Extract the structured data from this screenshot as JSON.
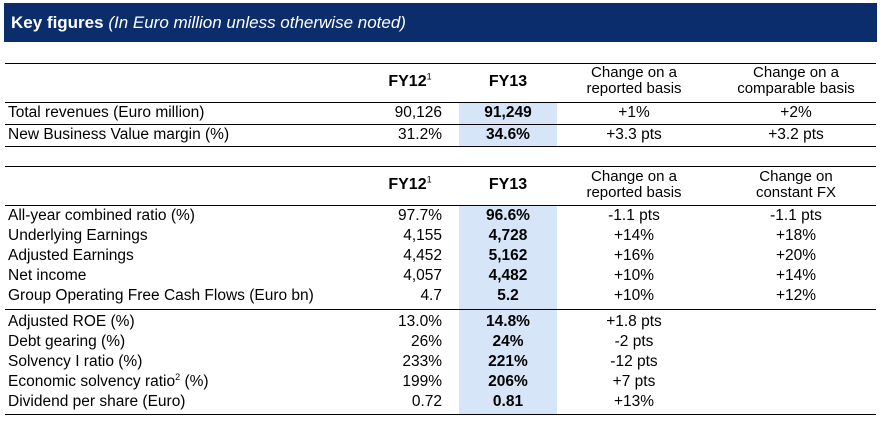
{
  "title": {
    "main": "Key figures",
    "sub": "(In Euro million unless otherwise noted)"
  },
  "table1": {
    "headers": {
      "fy12": "FY12",
      "fy12_note": "1",
      "fy13": "FY13",
      "change_reported_1": "Change on a",
      "change_reported_2": "reported basis",
      "change_other_1": "Change on a",
      "change_other_2": "comparable basis"
    },
    "rows": [
      {
        "label": "Total revenues (Euro million)",
        "fy12": "90,126",
        "fy13": "91,249",
        "reported": "+1%",
        "other": "+2%"
      },
      {
        "label": "New Business Value margin (%)",
        "fy12": "31.2%",
        "fy13": "34.6%",
        "reported": "+3.3 pts",
        "other": "+3.2 pts"
      }
    ]
  },
  "table2": {
    "headers": {
      "fy12": "FY12",
      "fy12_note": "1",
      "fy13": "FY13",
      "change_reported_1": "Change on a",
      "change_reported_2": "reported basis",
      "change_other_1": "Change on",
      "change_other_2": "constant FX"
    },
    "rows": [
      {
        "label": "All-year combined ratio (%)",
        "fy12": "97.7%",
        "fy13": "96.6%",
        "reported": "-1.1 pts",
        "other": "-1.1 pts"
      },
      {
        "label": "Underlying Earnings",
        "fy12": "4,155",
        "fy13": "4,728",
        "reported": "+14%",
        "other": "+18%"
      },
      {
        "label": "Adjusted Earnings",
        "fy12": "4,452",
        "fy13": "5,162",
        "reported": "+16%",
        "other": "+20%"
      },
      {
        "label": "Net income",
        "fy12": "4,057",
        "fy13": "4,482",
        "reported": "+10%",
        "other": "+14%"
      },
      {
        "label": "Group Operating Free Cash Flows (Euro bn)",
        "fy12": "4.7",
        "fy13": "5.2",
        "reported": "+10%",
        "other": "+12%"
      },
      {
        "label": "Adjusted ROE (%)",
        "fy12": "13.0%",
        "fy13": "14.8%",
        "reported": "+1.8 pts",
        "other": ""
      },
      {
        "label": "Debt gearing (%)",
        "fy12": "26%",
        "fy13": "24%",
        "reported": "-2 pts",
        "other": ""
      },
      {
        "label": "Solvency I ratio (%)",
        "fy12": "233%",
        "fy13": "221%",
        "reported": "-12 pts",
        "other": ""
      },
      {
        "label": "Economic solvency ratio",
        "label_note": "2",
        "label_suffix": " (%)",
        "fy12": "199%",
        "fy13": "206%",
        "reported": "+7 pts",
        "other": ""
      },
      {
        "label": "Dividend per share (Euro)",
        "fy12": "0.72",
        "fy13": "0.81",
        "reported": "+13%",
        "other": ""
      }
    ]
  }
}
